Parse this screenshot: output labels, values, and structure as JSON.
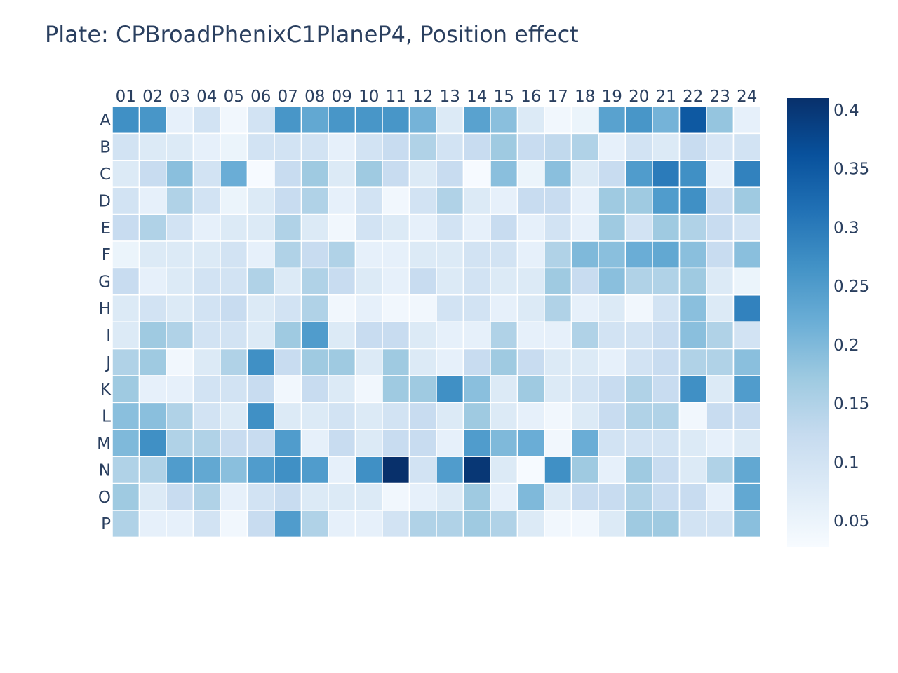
{
  "chart_data": {
    "type": "heatmap",
    "title": "Plate: CPBroadPhenixC1PlaneP4, Position effect",
    "x_categories": [
      "01",
      "02",
      "03",
      "04",
      "05",
      "06",
      "07",
      "08",
      "09",
      "10",
      "11",
      "12",
      "13",
      "14",
      "15",
      "16",
      "17",
      "18",
      "19",
      "20",
      "21",
      "22",
      "23",
      "24"
    ],
    "y_categories": [
      "A",
      "B",
      "C",
      "D",
      "E",
      "F",
      "G",
      "H",
      "I",
      "J",
      "K",
      "L",
      "M",
      "N",
      "O",
      "P"
    ],
    "zlim": [
      0.028,
      0.41
    ],
    "colorscale": [
      "#f7fbff",
      "#deebf7",
      "#c6dbef",
      "#9ecae1",
      "#6baed6",
      "#4292c6",
      "#2171b5",
      "#08519c",
      "#08306b"
    ],
    "colorbar_ticks": [
      "0.05",
      "0.1",
      "0.15",
      "0.2",
      "0.25",
      "0.3",
      "0.35",
      "0.4"
    ],
    "colorbar_tick_values": [
      0.05,
      0.1,
      0.15,
      0.2,
      0.25,
      0.3,
      0.35,
      0.4
    ],
    "z": [
      [
        0.27,
        0.26,
        0.06,
        0.1,
        0.04,
        0.1,
        0.26,
        0.23,
        0.26,
        0.26,
        0.26,
        0.21,
        0.08,
        0.24,
        0.19,
        0.08,
        0.04,
        0.05,
        0.24,
        0.26,
        0.21,
        0.35,
        0.18,
        0.06
      ],
      [
        0.1,
        0.08,
        0.08,
        0.06,
        0.05,
        0.1,
        0.1,
        0.1,
        0.06,
        0.1,
        0.12,
        0.15,
        0.1,
        0.12,
        0.17,
        0.12,
        0.13,
        0.15,
        0.06,
        0.1,
        0.08,
        0.12,
        0.09,
        0.1
      ],
      [
        0.08,
        0.12,
        0.19,
        0.1,
        0.22,
        0.03,
        0.12,
        0.17,
        0.08,
        0.17,
        0.12,
        0.08,
        0.12,
        0.03,
        0.19,
        0.05,
        0.19,
        0.08,
        0.12,
        0.25,
        0.3,
        0.27,
        0.06,
        0.29
      ],
      [
        0.1,
        0.06,
        0.15,
        0.1,
        0.05,
        0.08,
        0.12,
        0.15,
        0.06,
        0.1,
        0.04,
        0.1,
        0.15,
        0.08,
        0.06,
        0.12,
        0.12,
        0.06,
        0.17,
        0.17,
        0.25,
        0.27,
        0.12,
        0.17
      ],
      [
        0.12,
        0.15,
        0.1,
        0.06,
        0.08,
        0.08,
        0.15,
        0.08,
        0.04,
        0.1,
        0.08,
        0.06,
        0.1,
        0.06,
        0.12,
        0.06,
        0.1,
        0.06,
        0.17,
        0.1,
        0.17,
        0.15,
        0.12,
        0.1
      ],
      [
        0.05,
        0.08,
        0.08,
        0.08,
        0.1,
        0.06,
        0.15,
        0.12,
        0.15,
        0.06,
        0.06,
        0.08,
        0.08,
        0.1,
        0.1,
        0.06,
        0.15,
        0.2,
        0.19,
        0.22,
        0.23,
        0.19,
        0.12,
        0.19
      ],
      [
        0.12,
        0.06,
        0.08,
        0.1,
        0.1,
        0.15,
        0.08,
        0.15,
        0.12,
        0.08,
        0.06,
        0.12,
        0.08,
        0.1,
        0.08,
        0.08,
        0.17,
        0.12,
        0.19,
        0.15,
        0.15,
        0.17,
        0.08,
        0.05
      ],
      [
        0.08,
        0.1,
        0.08,
        0.1,
        0.12,
        0.08,
        0.1,
        0.15,
        0.04,
        0.06,
        0.04,
        0.04,
        0.1,
        0.1,
        0.06,
        0.08,
        0.15,
        0.06,
        0.08,
        0.04,
        0.1,
        0.19,
        0.08,
        0.29
      ],
      [
        0.08,
        0.17,
        0.15,
        0.1,
        0.1,
        0.08,
        0.17,
        0.25,
        0.08,
        0.12,
        0.12,
        0.08,
        0.06,
        0.06,
        0.15,
        0.06,
        0.06,
        0.15,
        0.1,
        0.1,
        0.12,
        0.19,
        0.15,
        0.1
      ],
      [
        0.15,
        0.17,
        0.04,
        0.08,
        0.15,
        0.27,
        0.12,
        0.17,
        0.17,
        0.08,
        0.17,
        0.08,
        0.06,
        0.12,
        0.17,
        0.12,
        0.08,
        0.08,
        0.06,
        0.1,
        0.12,
        0.15,
        0.15,
        0.19
      ],
      [
        0.17,
        0.06,
        0.06,
        0.1,
        0.1,
        0.12,
        0.04,
        0.12,
        0.08,
        0.04,
        0.17,
        0.17,
        0.27,
        0.19,
        0.08,
        0.17,
        0.08,
        0.1,
        0.12,
        0.15,
        0.12,
        0.27,
        0.08,
        0.25
      ],
      [
        0.19,
        0.19,
        0.15,
        0.1,
        0.08,
        0.27,
        0.08,
        0.08,
        0.1,
        0.08,
        0.1,
        0.12,
        0.08,
        0.17,
        0.08,
        0.06,
        0.04,
        0.08,
        0.12,
        0.15,
        0.15,
        0.04,
        0.12,
        0.12
      ],
      [
        0.2,
        0.27,
        0.15,
        0.15,
        0.12,
        0.12,
        0.25,
        0.06,
        0.12,
        0.08,
        0.12,
        0.12,
        0.06,
        0.25,
        0.2,
        0.22,
        0.04,
        0.22,
        0.1,
        0.1,
        0.1,
        0.08,
        0.06,
        0.08
      ],
      [
        0.15,
        0.15,
        0.25,
        0.23,
        0.19,
        0.25,
        0.27,
        0.25,
        0.06,
        0.27,
        0.41,
        0.1,
        0.25,
        0.4,
        0.08,
        0.03,
        0.27,
        0.17,
        0.06,
        0.17,
        0.12,
        0.08,
        0.15,
        0.23
      ],
      [
        0.17,
        0.08,
        0.12,
        0.15,
        0.06,
        0.1,
        0.12,
        0.08,
        0.08,
        0.08,
        0.04,
        0.06,
        0.08,
        0.17,
        0.06,
        0.2,
        0.08,
        0.12,
        0.12,
        0.15,
        0.12,
        0.12,
        0.06,
        0.23
      ],
      [
        0.15,
        0.06,
        0.06,
        0.1,
        0.04,
        0.12,
        0.25,
        0.15,
        0.06,
        0.06,
        0.1,
        0.15,
        0.15,
        0.17,
        0.15,
        0.08,
        0.04,
        0.04,
        0.08,
        0.17,
        0.17,
        0.1,
        0.1,
        0.19
      ]
    ]
  }
}
